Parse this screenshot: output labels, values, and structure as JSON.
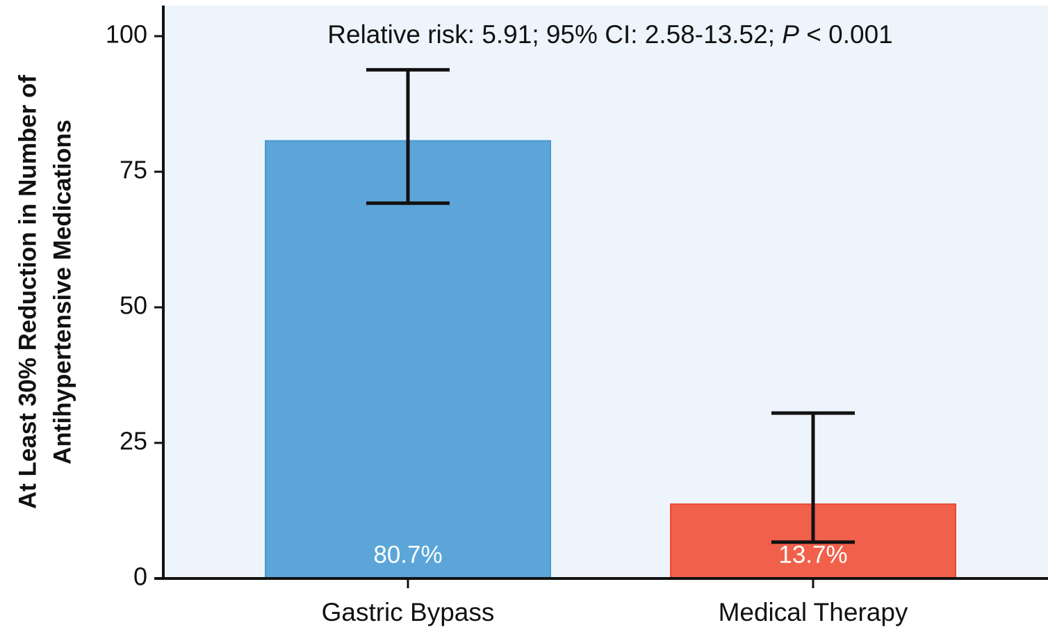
{
  "chart_data": {
    "type": "bar",
    "annotation": [
      "Relative risk: 5.91; 95% CI: 2.58-13.52; ",
      "P",
      " < 0.001"
    ],
    "y_label": [
      "At Least 30% Reduction in Number of",
      "Antihypertensive Medications"
    ],
    "categories": [
      "Gastric Bypass",
      "Medical Therapy"
    ],
    "values": [
      80.7,
      13.7
    ],
    "value_labels": [
      "80.7%",
      "13.7%"
    ],
    "ci_lower": [
      69.2,
      6.7
    ],
    "ci_upper": [
      93.8,
      30.5
    ],
    "colors": [
      "#5ca5d9",
      "#f0604a"
    ],
    "ylim": [
      0,
      100
    ],
    "yticks": [
      0,
      25,
      50,
      75,
      100
    ],
    "grid": false
  }
}
